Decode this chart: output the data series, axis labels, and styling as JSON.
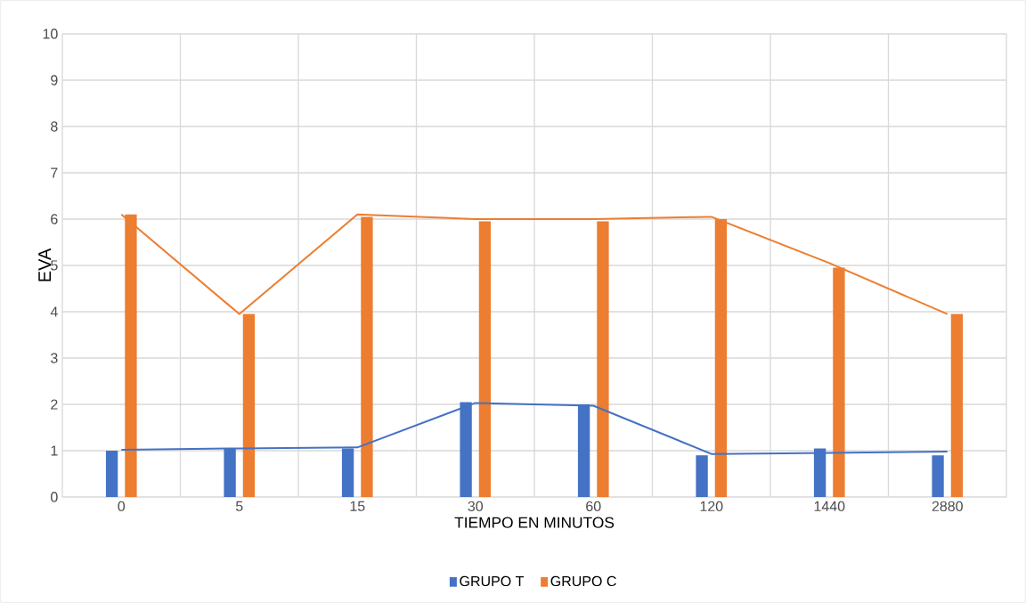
{
  "chart_data": {
    "type": "bar",
    "xlabel": "TIEMPO EN MINUTOS",
    "ylabel": "EVA",
    "categories": [
      "0",
      "5",
      "15",
      "30",
      "60",
      "120",
      "1440",
      "2880"
    ],
    "series": [
      {
        "name": "GRUPO T",
        "color": "#4472c4",
        "values": [
          1.0,
          1.05,
          1.05,
          2.05,
          2.0,
          0.9,
          1.05,
          0.9
        ]
      },
      {
        "name": "GRUPO C",
        "color": "#ed7d31",
        "values": [
          6.1,
          3.95,
          6.05,
          5.95,
          5.95,
          6.0,
          4.95,
          3.95
        ]
      },
      {
        "type": "line",
        "color": "#4472c4",
        "values": [
          1.02,
          1.05,
          1.07,
          2.03,
          1.97,
          0.93,
          0.95,
          0.98
        ]
      },
      {
        "type": "line",
        "color": "#ed7d31",
        "values": [
          6.1,
          3.95,
          6.1,
          6.0,
          6.0,
          6.05,
          5.05,
          3.95
        ]
      }
    ],
    "ylim": [
      0,
      10
    ],
    "yticks": [
      0,
      1,
      2,
      3,
      4,
      5,
      6,
      7,
      8,
      9,
      10
    ],
    "grid": true,
    "legend": "bottom"
  }
}
